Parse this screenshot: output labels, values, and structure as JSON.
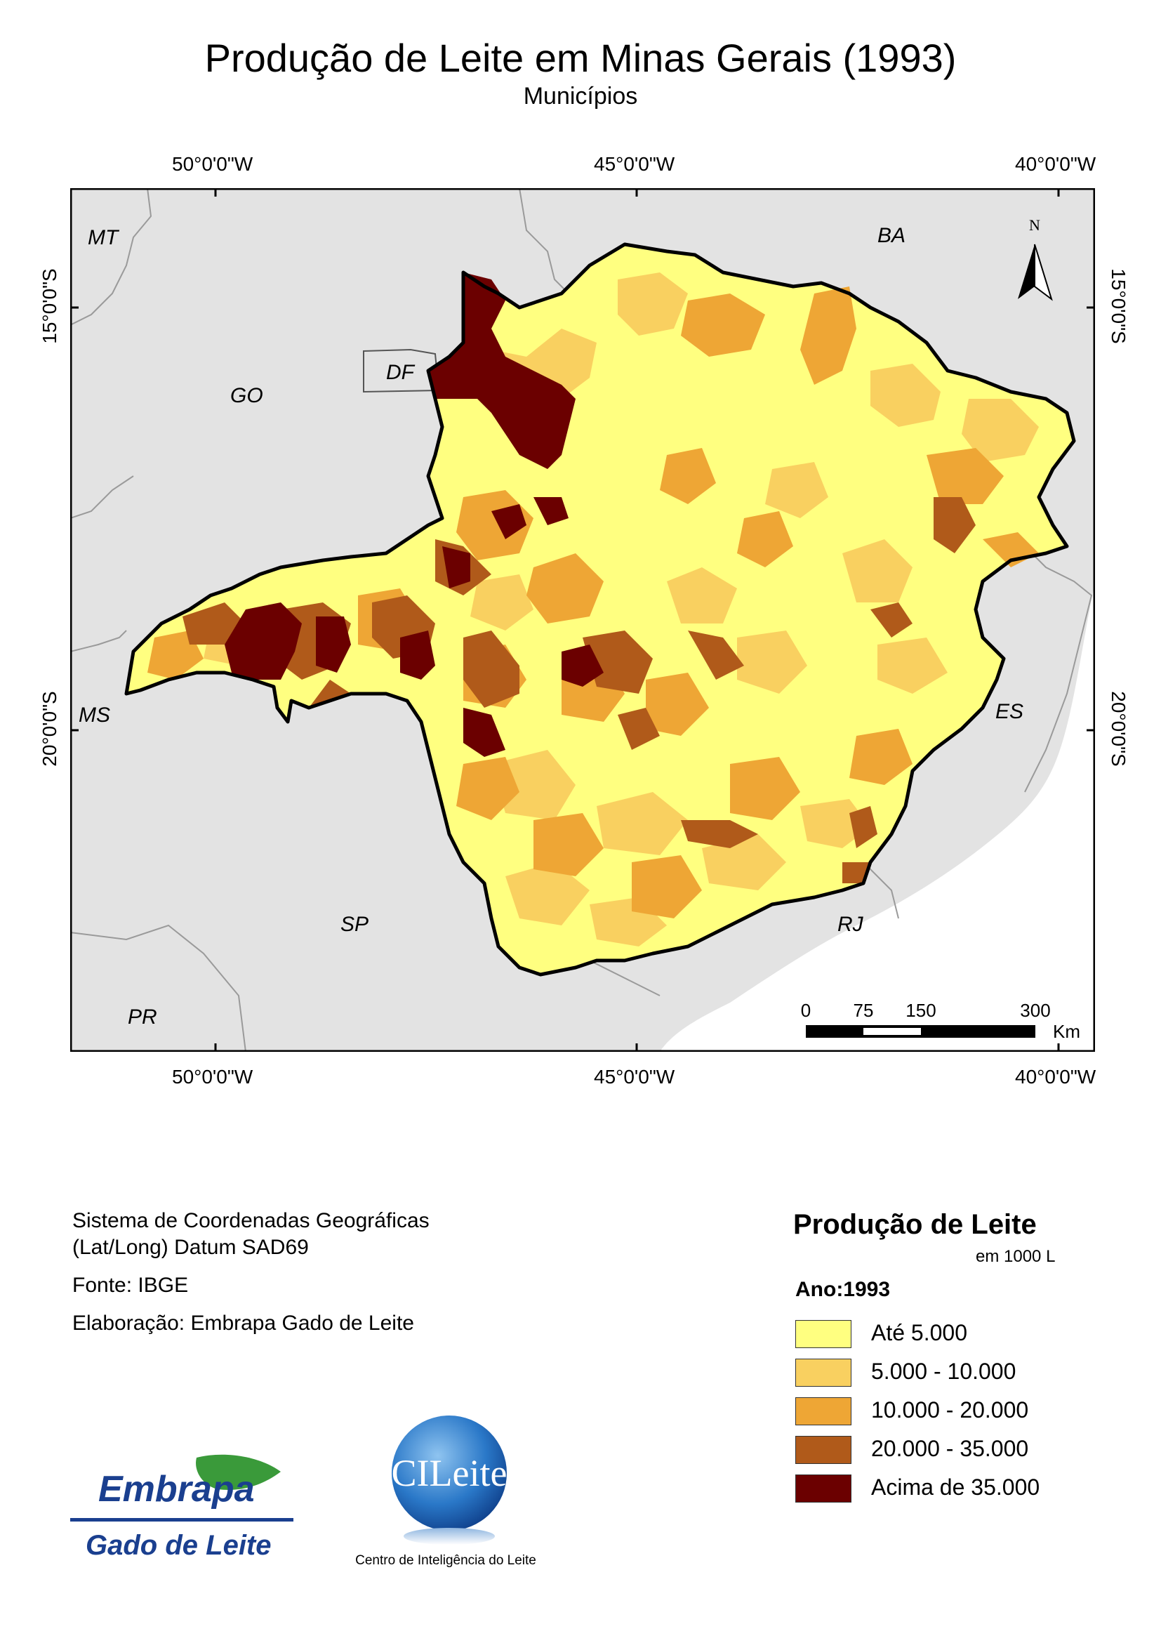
{
  "header": {
    "title": "Produção de Leite em Minas Gerais (1993)",
    "subtitle": "Municípios"
  },
  "map": {
    "graticule": {
      "top": [
        "50°0'0\"W",
        "45°0'0\"W",
        "40°0'0\"W"
      ],
      "bottom": [
        "50°0'0\"W",
        "45°0'0\"W",
        "40°0'0\"W"
      ],
      "left": [
        "15°0'0\"S",
        "20°0'0\"S"
      ],
      "right": [
        "15°0'0\"S",
        "20°0'0\"S"
      ]
    },
    "state_labels": {
      "mt": "MT",
      "ba": "BA",
      "go": "GO",
      "df": "DF",
      "ms": "MS",
      "es": "ES",
      "sp": "SP",
      "rj": "RJ",
      "pr": "PR"
    },
    "north_arrow": "N",
    "scale_bar": {
      "ticks": [
        "0",
        "75",
        "150",
        "300"
      ],
      "unit": "Km"
    },
    "colors": {
      "ocean": "#ffffff",
      "land": "#e3e3e3",
      "c1": "#ffff80",
      "c2": "#f9d060",
      "c3": "#eea635",
      "c4": "#b05a1a",
      "c5": "#6b0000"
    }
  },
  "credits": {
    "line1": "Sistema de Coordenadas Geográficas",
    "line2": "(Lat/Long) Datum SAD69",
    "source": "Fonte: IBGE",
    "author": "Elaboração: Embrapa Gado de Leite"
  },
  "legend": {
    "title": "Produção de Leite",
    "unit": "em 1000 L",
    "year": "Ano:1993",
    "items": [
      {
        "label": "Até 5.000",
        "color": "#ffff80"
      },
      {
        "label": "5.000 - 10.000",
        "color": "#f9d060"
      },
      {
        "label": "10.000 - 20.000",
        "color": "#eea635"
      },
      {
        "label": "20.000 - 35.000",
        "color": "#b05a1a"
      },
      {
        "label": "Acima de 35.000",
        "color": "#6b0000"
      }
    ]
  },
  "logos": {
    "embrapa_name": "Embrapa",
    "embrapa_unit": "Gado de Leite",
    "cileite_name": "CILeite",
    "cileite_caption": "Centro de Inteligência do Leite"
  }
}
